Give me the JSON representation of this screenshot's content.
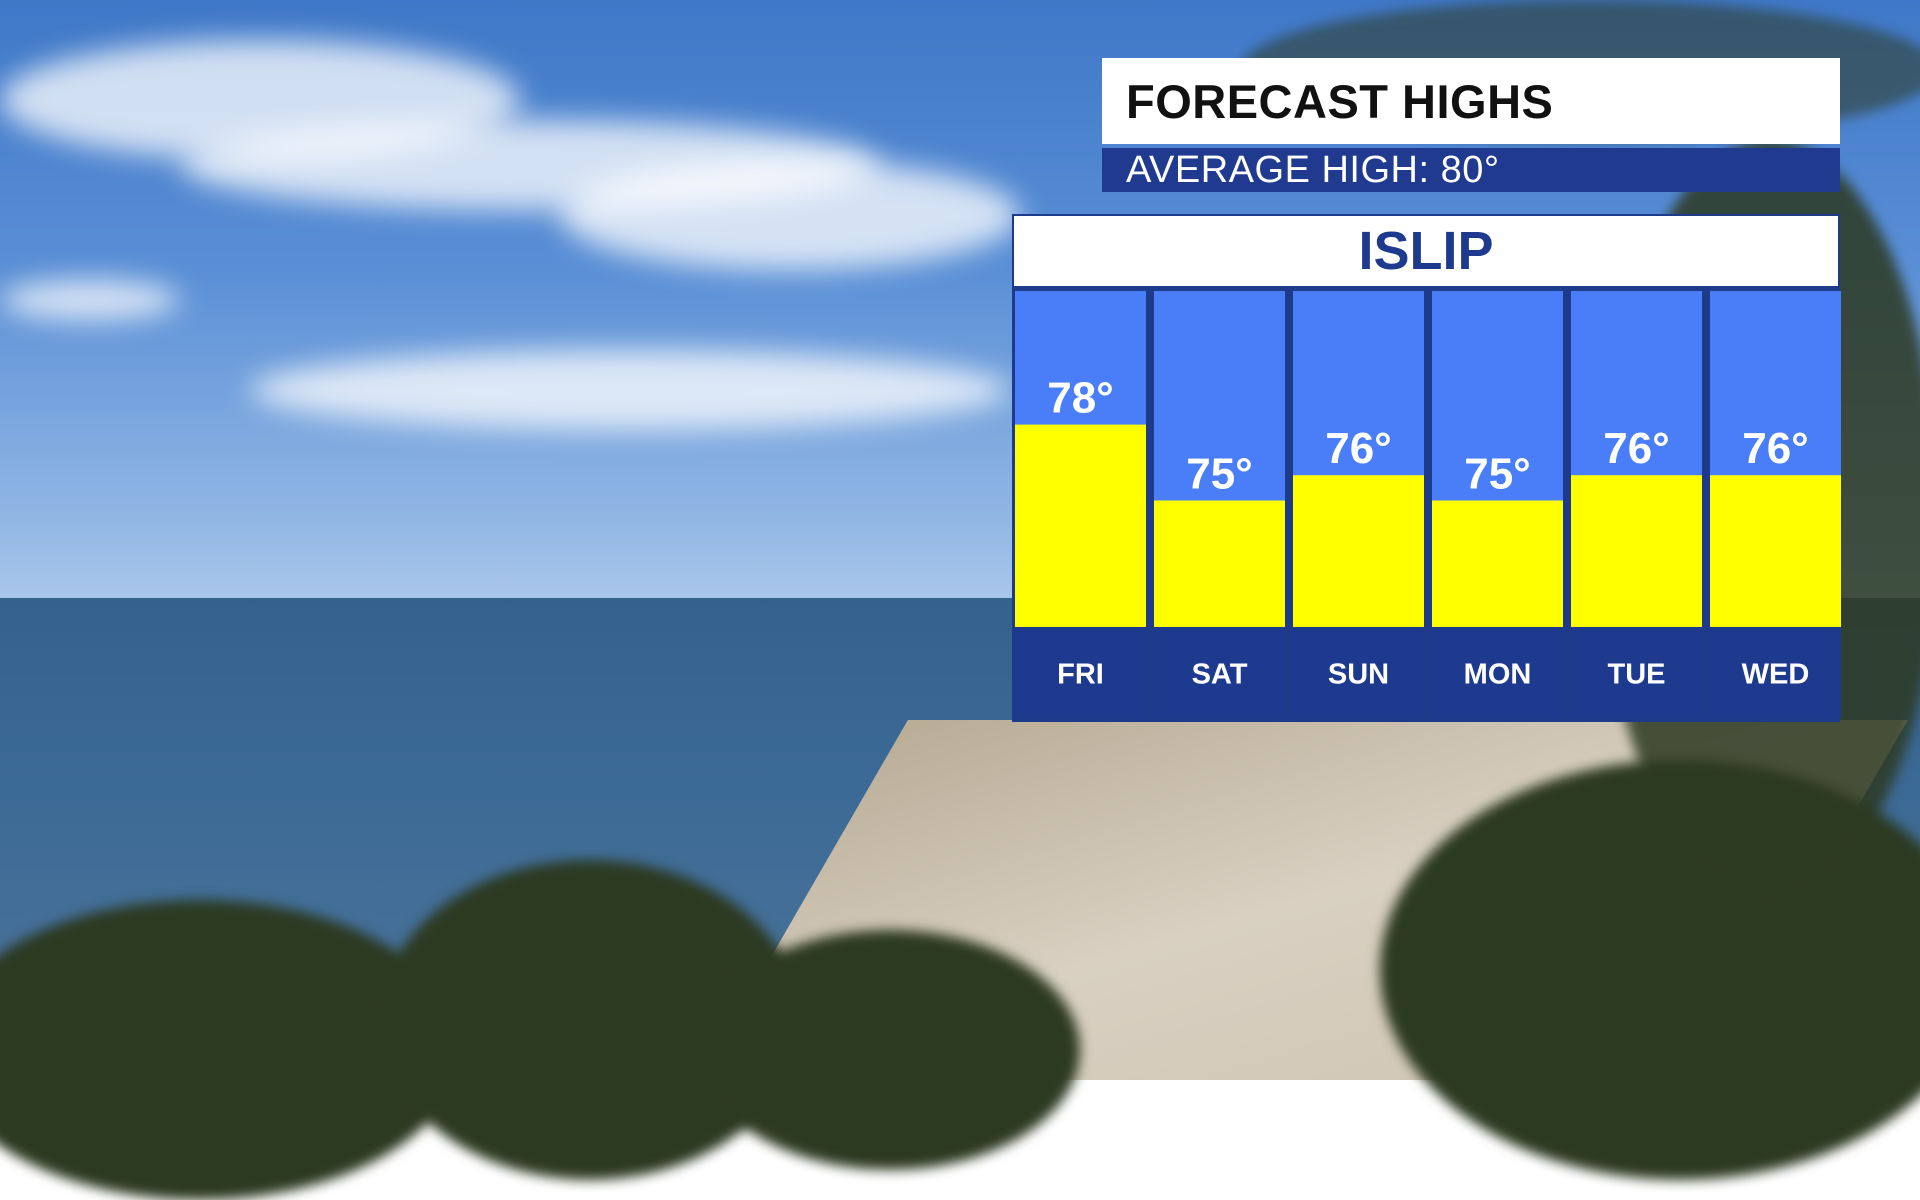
{
  "header": {
    "title": "FORECAST HIGHS",
    "subtitle": "AVERAGE HIGH: 80°"
  },
  "location": "ISLIP",
  "colors": {
    "column_bg": "#4a7ef8",
    "bar_fill": "#ffff00",
    "footer_bg": "#1e3a8f",
    "frame": "#1e3a8a"
  },
  "chart_data": {
    "type": "bar",
    "title": "FORECAST HIGHS",
    "subtitle": "AVERAGE HIGH: 80°",
    "categories": [
      "FRI",
      "SAT",
      "SUN",
      "MON",
      "TUE",
      "WED"
    ],
    "values": [
      78,
      75,
      76,
      75,
      76,
      76
    ],
    "value_labels": [
      "78°",
      "75°",
      "76°",
      "75°",
      "76°",
      "76°"
    ],
    "unit": "°F",
    "grid": false,
    "legend": "none"
  }
}
